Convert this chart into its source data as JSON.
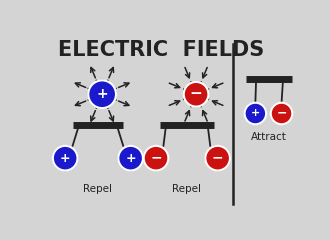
{
  "title": "ELECTRIC  FIELDS",
  "bg_color": "#d4d4d4",
  "plus_color": "#1a1acc",
  "minus_color": "#cc1111",
  "white": "#ffffff",
  "black": "#222222",
  "title_fontsize": 15,
  "label_fontsize": 7.5,
  "repel_label": "Repel",
  "attract_label": "Attract"
}
